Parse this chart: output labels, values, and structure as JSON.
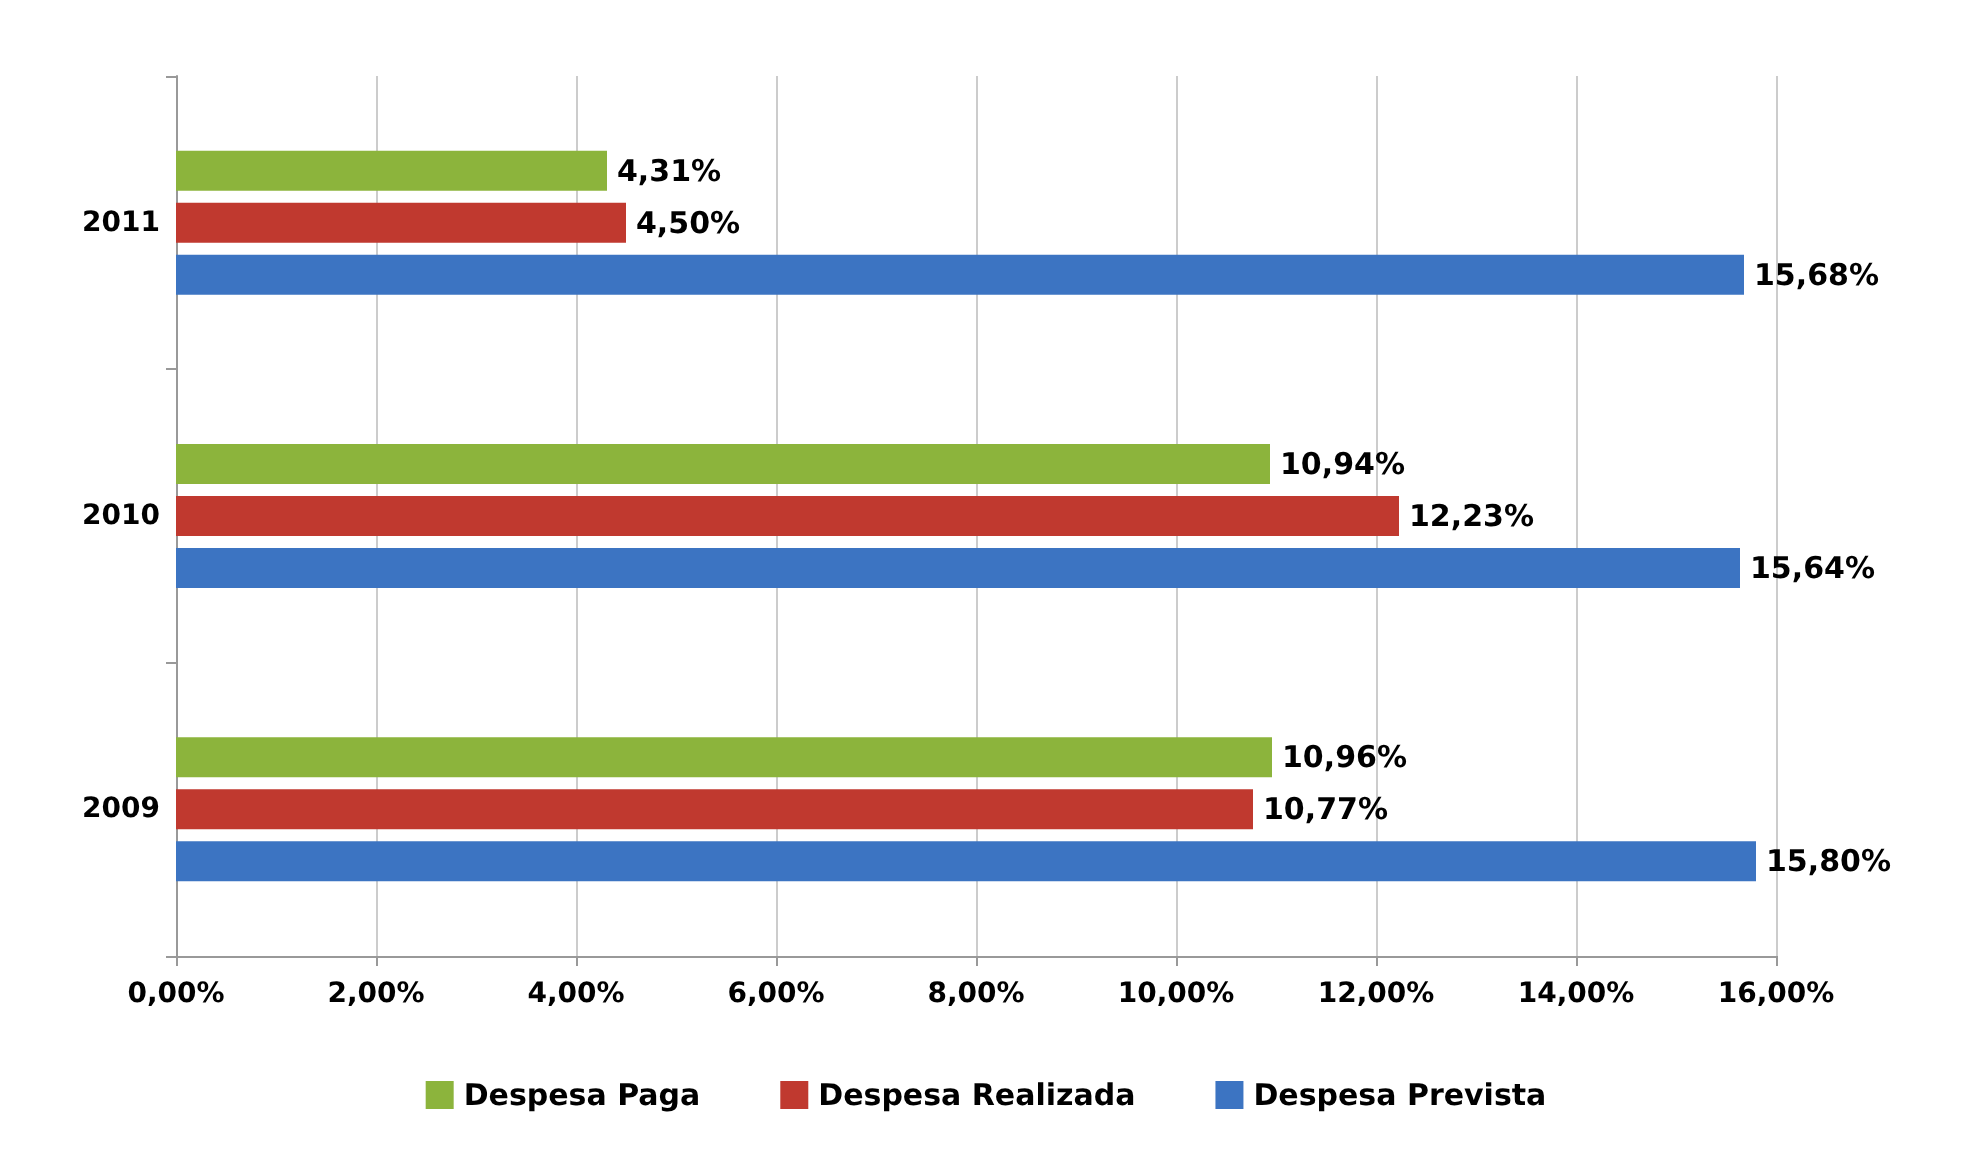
{
  "chart_data": {
    "type": "bar",
    "orientation": "horizontal",
    "categories": [
      "2011",
      "2010",
      "2009"
    ],
    "series": [
      {
        "name": "Despesa Paga",
        "color": "#8cb43c",
        "values": [
          4.31,
          10.94,
          10.96
        ],
        "value_labels": [
          "4,31%",
          "10,94%",
          "10,96%"
        ]
      },
      {
        "name": "Despesa Realizada",
        "color": "#c0392f",
        "values": [
          4.5,
          12.23,
          10.77
        ],
        "value_labels": [
          "4,50%",
          "12,23%",
          "10,77%"
        ]
      },
      {
        "name": "Despesa Prevista",
        "color": "#3c74c2",
        "values": [
          15.68,
          15.64,
          15.8
        ],
        "value_labels": [
          "15,68%",
          "15,64%",
          "15,80%"
        ]
      }
    ],
    "xlim": [
      0,
      16
    ],
    "xticks": [
      {
        "value": 0,
        "label": "0,00%"
      },
      {
        "value": 2,
        "label": "2,00%"
      },
      {
        "value": 4,
        "label": "4,00%"
      },
      {
        "value": 6,
        "label": "6,00%"
      },
      {
        "value": 8,
        "label": "8,00%"
      },
      {
        "value": 10,
        "label": "10,00%"
      },
      {
        "value": 12,
        "label": "12,00%"
      },
      {
        "value": 14,
        "label": "14,00%"
      },
      {
        "value": 16,
        "label": "16,00%"
      }
    ],
    "grid": "x",
    "legend": "bottom"
  }
}
